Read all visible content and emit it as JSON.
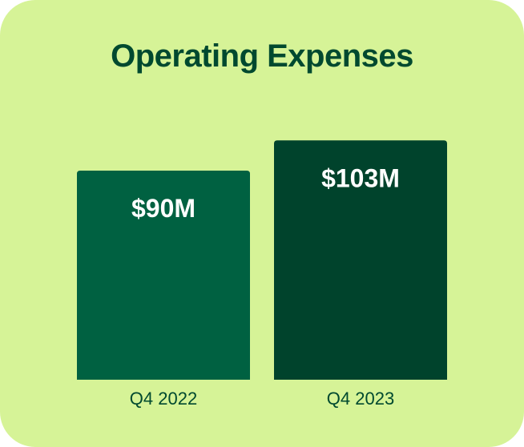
{
  "colors": {
    "background": "#d6f397",
    "title": "#00492f",
    "bar_q4_2022": "#006141",
    "bar_q4_2023": "#00432c",
    "value_label": "#ffffff",
    "category_label": "#00492f"
  },
  "chart_data": {
    "type": "bar",
    "title": "Operating Expenses",
    "categories": [
      "Q4 2022",
      "Q4 2023"
    ],
    "values": [
      90,
      103
    ],
    "value_labels": [
      "$90M",
      "$103M"
    ],
    "unit": "$M",
    "ylim": [
      0,
      120
    ],
    "grid": false,
    "legend": "none"
  }
}
